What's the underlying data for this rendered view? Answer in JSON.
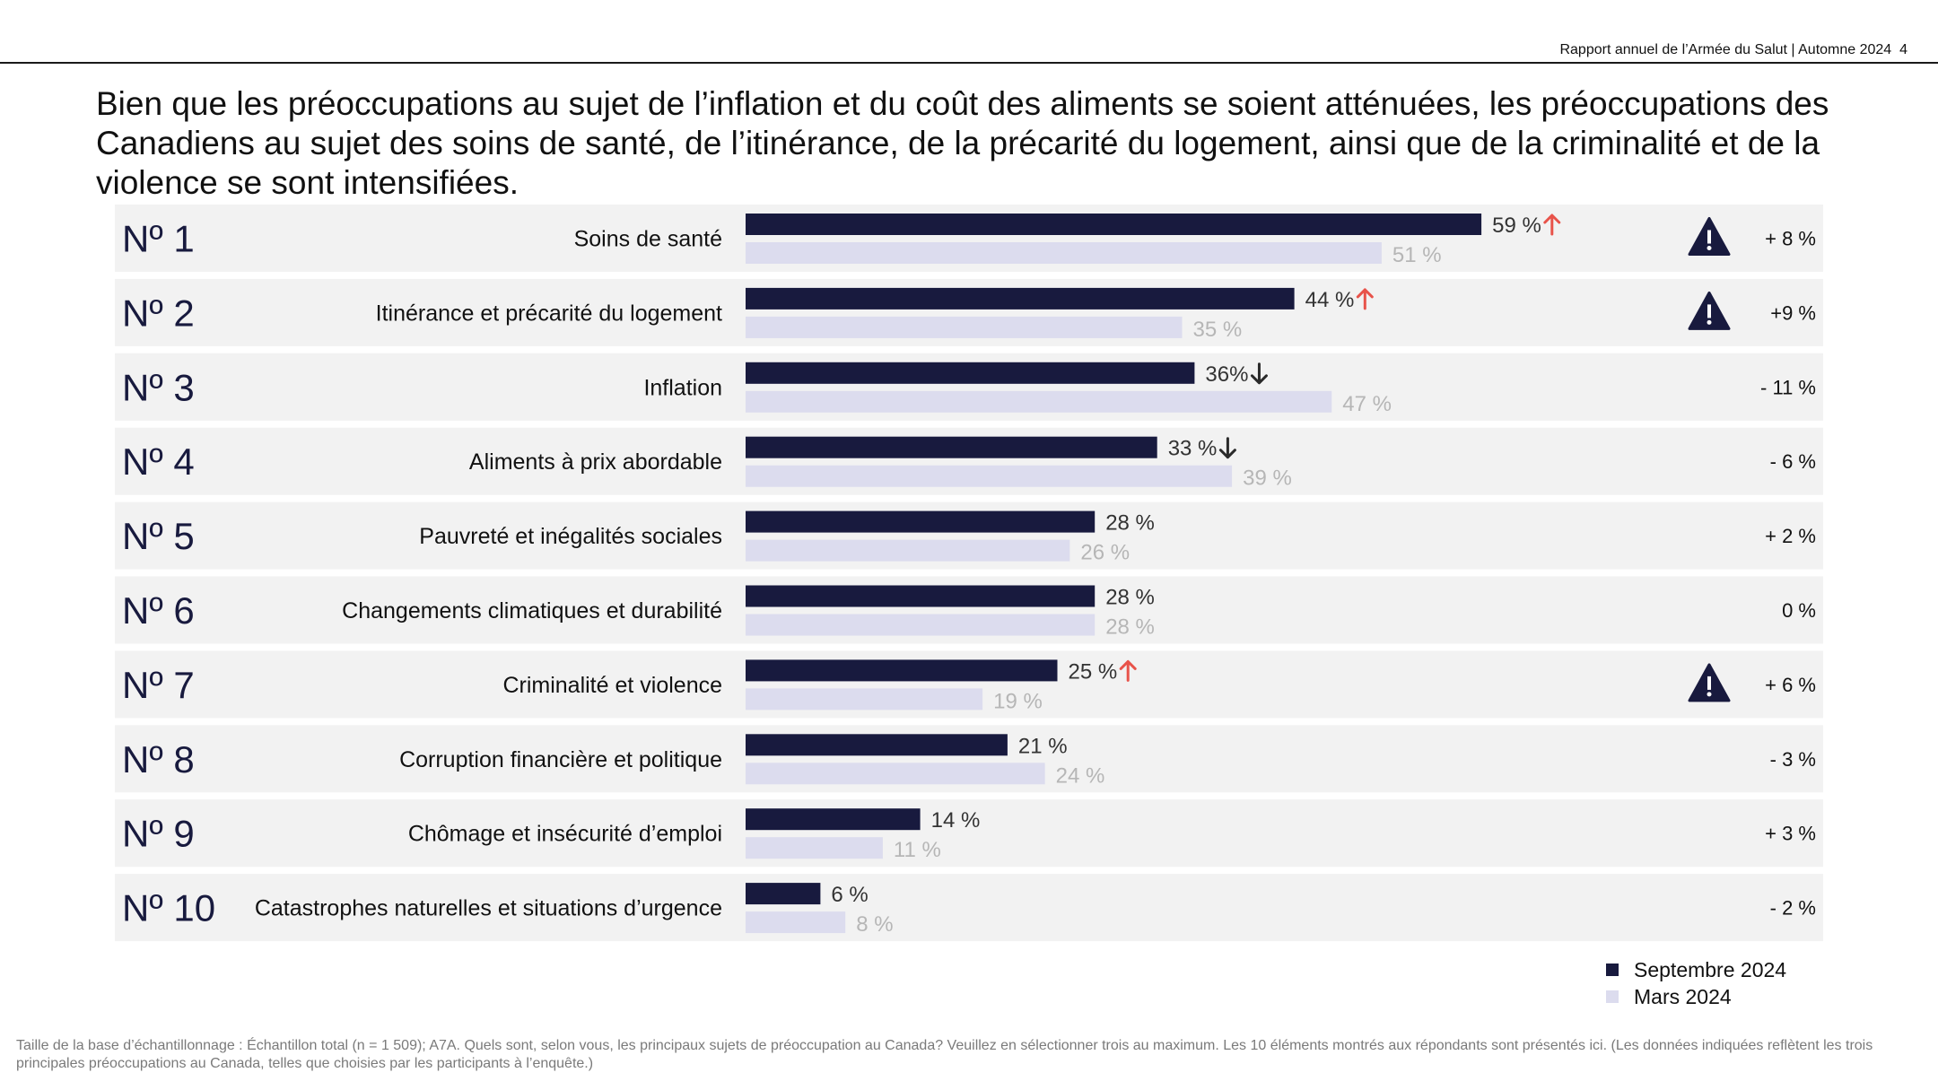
{
  "header": {
    "report_label": "Rapport annuel de l’Armée du Salut | Automne 2024",
    "page_number": "4"
  },
  "title": "Bien que les préoccupations au sujet de l’inflation et du coût des aliments se soient atténuées, les préoccupations des Canadiens au sujet des soins de santé, de l’itinérance, de la précarité du logement, ainsi que de la criminalité et de la violence se sont intensifiées.",
  "colors": {
    "current_bar": "#181a3e",
    "previous_bar": "#dcdcee",
    "previous_label": "#b6b6b6",
    "row_background": "#f2f2f2",
    "arrow_up": "#e8534a",
    "arrow_down": "#2a2a2a",
    "warning": "#181a3e"
  },
  "chart_data": {
    "type": "bar",
    "orientation": "horizontal",
    "title": "Principaux sujets de préoccupation au Canada",
    "value_unit": "%",
    "series": [
      {
        "name": "Septembre 2024",
        "values": [
          59,
          44,
          36,
          33,
          28,
          28,
          25,
          21,
          14,
          6
        ]
      },
      {
        "name": "Mars 2024",
        "values": [
          51,
          35,
          47,
          39,
          26,
          28,
          19,
          24,
          11,
          8
        ]
      }
    ],
    "rows": [
      {
        "rank": "Nº 1",
        "label": "Soins de santé",
        "current_label": "59 %",
        "previous_label": "51 %",
        "trend": "up",
        "warning": true,
        "change": "+ 8 %"
      },
      {
        "rank": "Nº 2",
        "label": "Itinérance et précarité du logement",
        "current_label": "44 %",
        "previous_label": "35 %",
        "trend": "up",
        "warning": true,
        "change": "+9 %"
      },
      {
        "rank": "Nº 3",
        "label": "Inflation",
        "current_label": "36%",
        "previous_label": "47 %",
        "trend": "down",
        "warning": false,
        "change": "- 11 %"
      },
      {
        "rank": "Nº 4",
        "label": "Aliments à prix abordable",
        "current_label": "33 %",
        "previous_label": "39 %",
        "trend": "down",
        "warning": false,
        "change": "- 6 %"
      },
      {
        "rank": "Nº 5",
        "label": "Pauvreté et inégalités sociales",
        "current_label": "28 %",
        "previous_label": "26 %",
        "trend": "none",
        "warning": false,
        "change": "+ 2 %"
      },
      {
        "rank": "Nº 6",
        "label": "Changements climatiques et durabilité",
        "current_label": "28 %",
        "previous_label": "28 %",
        "trend": "none",
        "warning": false,
        "change": "0 %"
      },
      {
        "rank": "Nº 7",
        "label": "Criminalité et violence",
        "current_label": "25 %",
        "previous_label": "19 %",
        "trend": "up",
        "warning": true,
        "change": "+ 6 %"
      },
      {
        "rank": "Nº 8",
        "label": "Corruption financière et politique",
        "current_label": "21 %",
        "previous_label": "24 %",
        "trend": "none",
        "warning": false,
        "change": "- 3 %"
      },
      {
        "rank": "Nº 9",
        "label": "Chômage et insécurité d’emploi",
        "current_label": "14 %",
        "previous_label": "11 %",
        "trend": "none",
        "warning": false,
        "change": "+ 3 %"
      },
      {
        "rank": "Nº 10",
        "label": "Catastrophes naturelles et situations d’urgence",
        "current_label": "6 %",
        "previous_label": "8 %",
        "trend": "none",
        "warning": false,
        "change": "- 2 %"
      }
    ],
    "legend": [
      "Septembre 2024",
      "Mars 2024"
    ],
    "legend_position": "bottom-right"
  },
  "footnote": "Taille de la base d’échantillonnage : Échantillon total (n = 1 509); A7A. Quels sont, selon vous, les principaux sujets de préoccupation au Canada? Veuillez en sélectionner trois au maximum. Les 10 éléments montrés aux répondants sont présentés ici. (Les données indiquées reflètent les trois principales préoccupations au Canada, telles que choisies par les participants à l’enquête.)"
}
